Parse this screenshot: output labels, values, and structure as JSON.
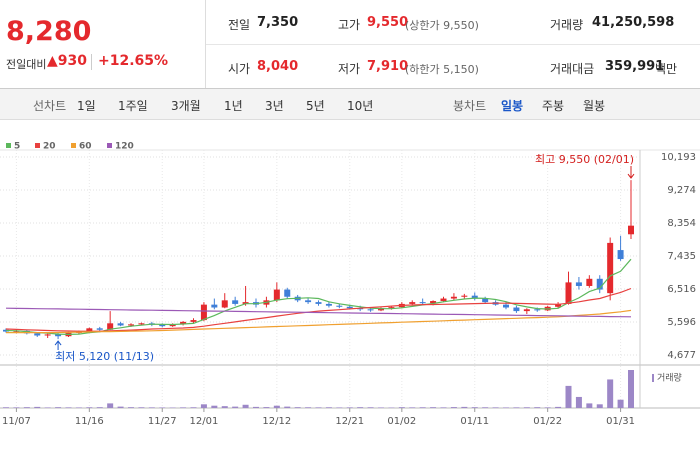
{
  "header": {
    "price": "8,280",
    "change_label": "전일대비",
    "change": "▲930",
    "change_pct": "+12.65%",
    "prev_label": "전일",
    "prev": "7,350",
    "high_label": "고가",
    "high": "9,550",
    "upper_limit": "(상한가 9,550)",
    "volume_label": "거래량",
    "volume": "41,250,598",
    "open_label": "시가",
    "open": "8,040",
    "low_label": "저가",
    "low": "7,910",
    "lower_limit": "(하한가 5,150)",
    "amount_label": "거래대금",
    "amount": "359,991",
    "amount_unit": "백만"
  },
  "tabs": {
    "line_label": "선차트",
    "line": [
      "1일",
      "1주일",
      "3개월",
      "1년",
      "3년",
      "5년",
      "10년"
    ],
    "candle_label": "봉차트",
    "candle": [
      "일봉",
      "주봉",
      "월봉"
    ]
  },
  "chart_data": {
    "type": "candlestick",
    "categories": [
      null,
      "11/07",
      null,
      null,
      null,
      null,
      null,
      null,
      "11/16",
      null,
      null,
      null,
      null,
      null,
      null,
      "11/27",
      null,
      null,
      null,
      "12/01",
      null,
      null,
      null,
      null,
      null,
      null,
      "12/12",
      null,
      null,
      null,
      null,
      null,
      null,
      "12/21",
      null,
      null,
      null,
      null,
      "01/02",
      null,
      null,
      null,
      null,
      null,
      null,
      "01/11",
      null,
      null,
      null,
      null,
      null,
      null,
      "01/22",
      null,
      null,
      null,
      null,
      null,
      null,
      "01/31",
      null
    ],
    "open": [
      5380,
      5330,
      5350,
      5280,
      5220,
      5250,
      5200,
      5300,
      5320,
      5420,
      5380,
      5560,
      5500,
      5530,
      5560,
      5520,
      5480,
      5540,
      5600,
      5650,
      6080,
      6000,
      6200,
      6100,
      6150,
      6080,
      6200,
      6500,
      6300,
      6200,
      6150,
      6100,
      6050,
      6020,
      5980,
      5950,
      5920,
      5980,
      6010,
      6100,
      6150,
      6120,
      6180,
      6250,
      6300,
      6330,
      6250,
      6150,
      6080,
      6000,
      5900,
      5950,
      5920,
      6020,
      6100,
      6700,
      6600,
      6800,
      6400,
      7600,
      8040
    ],
    "high": [
      5420,
      5400,
      5380,
      5300,
      5280,
      5290,
      5320,
      5360,
      5440,
      5460,
      5900,
      5600,
      5560,
      5580,
      5600,
      5560,
      5560,
      5620,
      5700,
      6150,
      6250,
      6400,
      6300,
      6600,
      6250,
      6300,
      6700,
      6550,
      6350,
      6250,
      6200,
      6150,
      6100,
      6080,
      6050,
      6000,
      6000,
      6050,
      6150,
      6200,
      6250,
      6200,
      6300,
      6400,
      6380,
      6420,
      6300,
      6200,
      6150,
      6050,
      5980,
      6000,
      6050,
      6150,
      7000,
      6850,
      6900,
      6900,
      7950,
      8000,
      9550
    ],
    "low": [
      5300,
      5280,
      5250,
      5180,
      5150,
      5120,
      5180,
      5260,
      5300,
      5340,
      5370,
      5480,
      5460,
      5500,
      5480,
      5450,
      5460,
      5500,
      5560,
      5620,
      5950,
      5980,
      6050,
      6050,
      6000,
      6000,
      6150,
      6250,
      6150,
      6100,
      6050,
      6000,
      5980,
      5950,
      5900,
      5880,
      5900,
      5940,
      5980,
      6050,
      6080,
      6060,
      6150,
      6200,
      6250,
      6200,
      6100,
      6050,
      5950,
      5850,
      5820,
      5880,
      5900,
      5980,
      6080,
      6500,
      6550,
      6400,
      6200,
      7300,
      7910
    ],
    "close": [
      5330,
      5350,
      5280,
      5220,
      5250,
      5200,
      5300,
      5320,
      5420,
      5380,
      5560,
      5500,
      5530,
      5560,
      5520,
      5480,
      5540,
      5600,
      5650,
      6080,
      6000,
      6200,
      6100,
      6150,
      6080,
      6200,
      6500,
      6300,
      6200,
      6150,
      6100,
      6050,
      6020,
      5980,
      5950,
      5920,
      5980,
      6010,
      6100,
      6150,
      6120,
      6180,
      6250,
      6300,
      6330,
      6250,
      6150,
      6080,
      6000,
      5900,
      5950,
      5920,
      6020,
      6100,
      6700,
      6600,
      6800,
      6500,
      7800,
      7350,
      8280
    ],
    "volume": [
      800000,
      700000,
      900000,
      1200000,
      600000,
      900000,
      700000,
      600000,
      800000,
      900000,
      5000000,
      1500000,
      900000,
      800000,
      700000,
      600000,
      500000,
      700000,
      800000,
      4000000,
      2500000,
      2000000,
      1500000,
      3500000,
      1200000,
      1000000,
      2500000,
      1500000,
      900000,
      800000,
      700000,
      800000,
      600000,
      700000,
      900000,
      800000,
      600000,
      500000,
      900000,
      700000,
      800000,
      900000,
      700000,
      1000000,
      1200000,
      900000,
      800000,
      700000,
      600000,
      700000,
      800000,
      900000,
      700000,
      1200000,
      24000000,
      12000000,
      5000000,
      4000000,
      31000000,
      9000000,
      41250598
    ],
    "volume_label": "거래량",
    "volume_color": "#9c87c7",
    "up_color": "#e4292d",
    "down_color": "#3f7fd8",
    "series": [
      {
        "name": "5",
        "color": "#5cb85c",
        "values": [
          5360,
          5350,
          5330,
          5300,
          5286,
          5260,
          5250,
          5258,
          5298,
          5324,
          5396,
          5436,
          5478,
          5506,
          5534,
          5530,
          5526,
          5540,
          5558,
          5670,
          5774,
          5906,
          6006,
          6106,
          6106,
          6146,
          6206,
          6246,
          6256,
          6270,
          6250,
          6160,
          6104,
          6060,
          6020,
          5984,
          5970,
          5968,
          5992,
          6032,
          6072,
          6112,
          6160,
          6200,
          6236,
          6262,
          6256,
          6222,
          6162,
          6076,
          6016,
          5970,
          5958,
          5978,
          6138,
          6268,
          6444,
          6540,
          6880,
          7010,
          7346
        ]
      },
      {
        "name": "20",
        "color": "#e8413f",
        "values": [
          5400,
          5390,
          5380,
          5370,
          5360,
          5350,
          5345,
          5340,
          5340,
          5340,
          5350,
          5360,
          5370,
          5385,
          5400,
          5410,
          5420,
          5430,
          5445,
          5480,
          5520,
          5560,
          5600,
          5640,
          5680,
          5720,
          5760,
          5800,
          5840,
          5870,
          5900,
          5920,
          5940,
          5960,
          5980,
          6000,
          6020,
          6040,
          6060,
          6070,
          6080,
          6085,
          6090,
          6095,
          6100,
          6110,
          6115,
          6120,
          6120,
          6115,
          6110,
          6100,
          6095,
          6090,
          6120,
          6160,
          6210,
          6250,
          6340,
          6420,
          6530
        ]
      },
      {
        "name": "60",
        "color": "#f0a030",
        "values": [
          5300,
          5300,
          5300,
          5300,
          5300,
          5305,
          5310,
          5315,
          5320,
          5325,
          5330,
          5335,
          5340,
          5345,
          5350,
          5360,
          5370,
          5380,
          5390,
          5400,
          5410,
          5420,
          5430,
          5440,
          5450,
          5460,
          5470,
          5480,
          5490,
          5500,
          5510,
          5520,
          5530,
          5540,
          5550,
          5560,
          5570,
          5580,
          5590,
          5600,
          5610,
          5620,
          5630,
          5640,
          5650,
          5660,
          5670,
          5680,
          5690,
          5700,
          5710,
          5720,
          5730,
          5740,
          5760,
          5780,
          5800,
          5820,
          5850,
          5880,
          5920
        ]
      },
      {
        "name": "120",
        "color": "#9b59b6",
        "values": [
          5980,
          5976,
          5972,
          5968,
          5964,
          5960,
          5956,
          5952,
          5948,
          5944,
          5940,
          5936,
          5932,
          5928,
          5924,
          5920,
          5916,
          5912,
          5908,
          5904,
          5900,
          5896,
          5892,
          5888,
          5884,
          5880,
          5876,
          5872,
          5868,
          5864,
          5860,
          5856,
          5852,
          5848,
          5844,
          5840,
          5836,
          5832,
          5828,
          5824,
          5820,
          5816,
          5812,
          5808,
          5804,
          5800,
          5796,
          5792,
          5788,
          5784,
          5780,
          5776,
          5772,
          5768,
          5764,
          5760,
          5756,
          5752,
          5748,
          5744,
          5740
        ]
      }
    ],
    "ylim": [
      4677,
      10193
    ],
    "yticks": [
      {
        "value": 4677,
        "label": "4,677"
      },
      {
        "value": 5596,
        "label": "5,596"
      },
      {
        "value": 6516,
        "label": "6,516"
      },
      {
        "value": 7435,
        "label": "7,435"
      },
      {
        "value": 8354,
        "label": "8,354"
      },
      {
        "value": 9274,
        "label": "9,274"
      },
      {
        "value": 10193,
        "label": "10,193"
      }
    ],
    "grid": true,
    "max_annotation": "최고 9,550 (02/01)",
    "min_annotation": "최저 5,120 (11/13)"
  }
}
